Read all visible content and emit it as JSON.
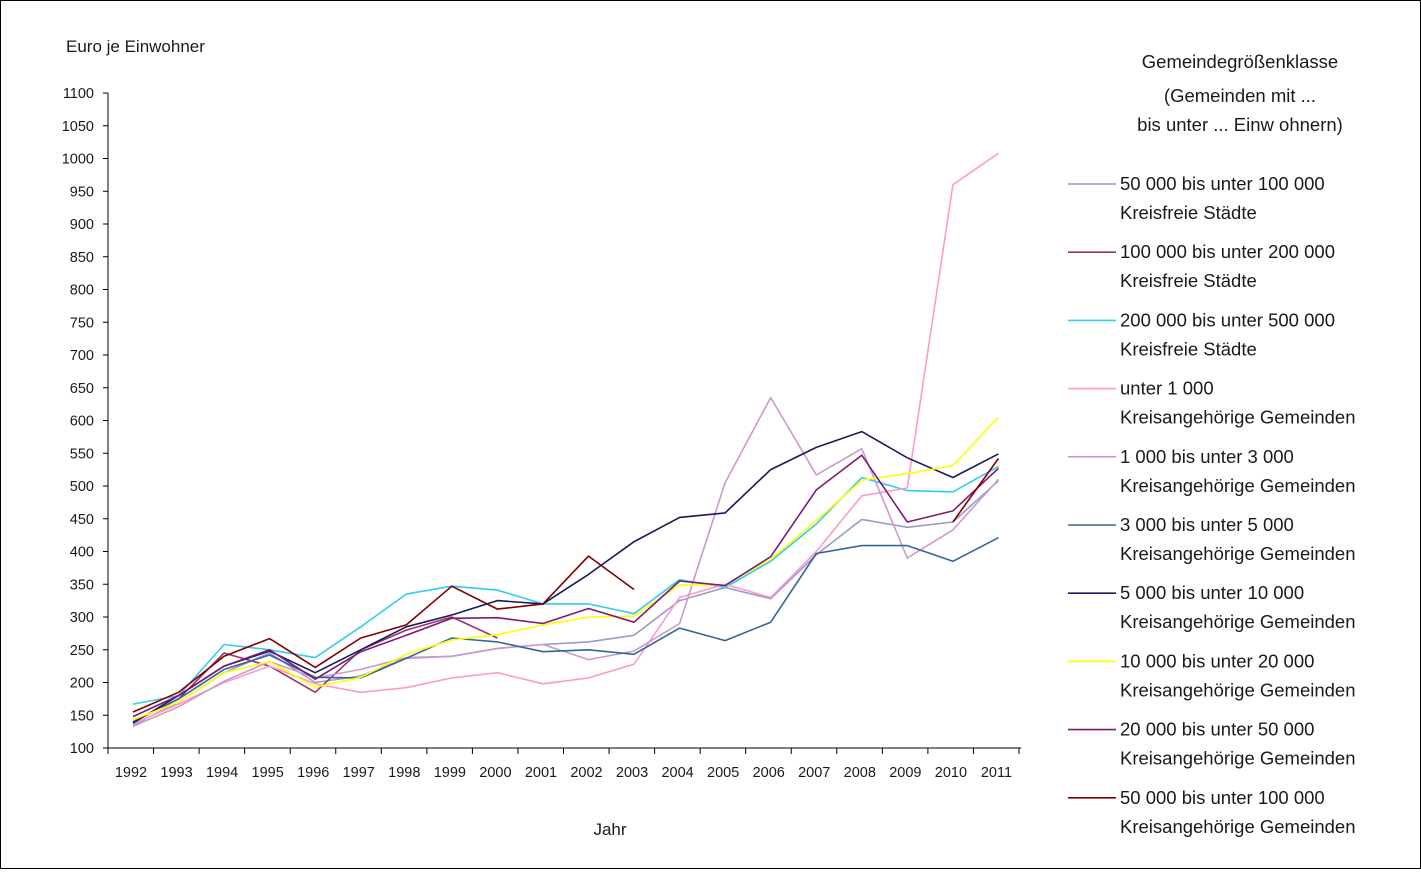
{
  "chart_data": {
    "type": "line",
    "ylabel": "Euro je Einwohner",
    "xlabel": "Jahr",
    "ylim": [
      100,
      1100
    ],
    "y_ticks": [
      100,
      150,
      200,
      250,
      300,
      350,
      400,
      450,
      500,
      550,
      600,
      650,
      700,
      750,
      800,
      850,
      900,
      950,
      1000,
      1050,
      1100
    ],
    "categories": [
      "1992",
      "1993",
      "1994",
      "1995",
      "1996",
      "1997",
      "1998",
      "1999",
      "2000",
      "2001",
      "2002",
      "2003",
      "2004",
      "2005",
      "2006",
      "2007",
      "2008",
      "2009",
      "2010",
      "2011"
    ],
    "grid": false,
    "legend": {
      "title_lines": [
        "Gemeindegrößenklasse",
        "(Gemeinden mit ...",
        "bis unter ... Einw ohnern)"
      ],
      "placement": "right"
    },
    "series": [
      {
        "name": "50 000 bis unter 100 000",
        "group": "Kreisfreie Städte",
        "color": "#9999cc",
        "values": [
          135,
          170,
          215,
          245,
          200,
          210,
          237,
          240,
          252,
          258,
          262,
          272,
          325,
          345,
          328,
          395,
          449,
          437,
          445,
          508
        ]
      },
      {
        "name": "100 000 bis unter 200 000",
        "group": "Kreisfreie Städte",
        "color": "#993366",
        "values": [
          140,
          175,
          245,
          225,
          185,
          250,
          280,
          300,
          268,
          null,
          null,
          null,
          null,
          null,
          null,
          null,
          null,
          null,
          null,
          null
        ]
      },
      {
        "name": "200 000 bis unter 500 000",
        "group": "Kreisfreie Städte",
        "color": "#33ccee",
        "values": [
          167,
          180,
          258,
          250,
          238,
          285,
          335,
          347,
          341,
          320,
          320,
          305,
          357,
          345,
          385,
          442,
          513,
          493,
          491,
          530
        ]
      },
      {
        "name": "unter 1 000",
        "group": "Kreisangehörige Gemeinden",
        "color": "#ff99cc",
        "values": [
          137,
          167,
          200,
          225,
          198,
          185,
          192,
          207,
          215,
          198,
          207,
          228,
          330,
          350,
          330,
          400,
          485,
          497,
          960,
          1008
        ]
      },
      {
        "name": "1 000 bis unter 3 000",
        "group": "Kreisangehörige Gemeinden",
        "color": "#cc99cc",
        "values": [
          133,
          163,
          202,
          232,
          207,
          220,
          238,
          240,
          252,
          258,
          235,
          248,
          290,
          505,
          635,
          517,
          557,
          390,
          433,
          510
        ]
      },
      {
        "name": "3 000 bis unter 5 000",
        "group": "Kreisangehörige Gemeinden",
        "color": "#336699",
        "values": [
          140,
          175,
          220,
          242,
          208,
          207,
          237,
          268,
          262,
          247,
          250,
          243,
          283,
          264,
          292,
          397,
          409,
          409,
          385,
          421
        ]
      },
      {
        "name": "5 000 bis unter  10 000",
        "group": "Kreisangehörige Gemeinden",
        "color": "#1a1a5c",
        "values": [
          138,
          180,
          225,
          248,
          215,
          250,
          285,
          303,
          325,
          320,
          365,
          415,
          452,
          459,
          525,
          559,
          583,
          543,
          513,
          549
        ]
      },
      {
        "name": "10 000 bis unter 20 000",
        "group": "Kreisangehörige Gemeinden",
        "color": "#ffff00",
        "values": [
          143,
          170,
          215,
          232,
          193,
          208,
          243,
          265,
          273,
          288,
          300,
          301,
          349,
          349,
          388,
          447,
          509,
          519,
          531,
          605
        ]
      },
      {
        "name": "20 000 bis unter 50 000",
        "group": "Kreisangehörige Gemeinden",
        "color": "#7a1a7a",
        "values": [
          148,
          180,
          225,
          250,
          205,
          247,
          272,
          298,
          299,
          290,
          313,
          292,
          355,
          348,
          392,
          494,
          547,
          445,
          462,
          527
        ]
      },
      {
        "name": "50 000 bis unter 100 000",
        "group": "Kreisangehörige Gemeinden",
        "color": "#800000",
        "values": [
          155,
          185,
          240,
          267,
          223,
          268,
          288,
          347,
          312,
          320,
          393,
          342,
          null,
          null,
          null,
          null,
          null,
          null,
          445,
          542
        ]
      }
    ]
  }
}
